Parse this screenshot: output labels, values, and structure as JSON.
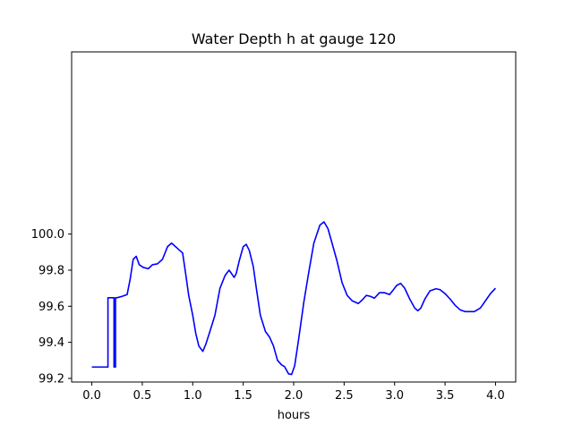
{
  "chart_data": {
    "type": "line",
    "title": "Water Depth h at gauge 120",
    "xlabel": "hours",
    "ylabel": "",
    "xlim": [
      -0.2,
      4.2
    ],
    "ylim": [
      99.18,
      101.01
    ],
    "grid": false,
    "x_ticks": [
      0.0,
      0.5,
      1.0,
      1.5,
      2.0,
      2.5,
      3.0,
      3.5,
      4.0
    ],
    "x_tick_labels": [
      "0.0",
      "0.5",
      "1.0",
      "1.5",
      "2.0",
      "2.5",
      "3.0",
      "3.5",
      "4.0"
    ],
    "y_ticks": [
      99.2,
      99.4,
      99.6,
      99.8,
      100.0
    ],
    "y_tick_labels": [
      "99.2",
      "99.4",
      "99.6",
      "99.8",
      "100.0"
    ],
    "series": [
      {
        "name": "",
        "color": "#0000ff",
        "points": [
          [
            0.0,
            99.263
          ],
          [
            0.16,
            99.263
          ],
          [
            0.16,
            99.647
          ],
          [
            0.22,
            99.647
          ],
          [
            0.22,
            99.263
          ],
          [
            0.235,
            99.263
          ],
          [
            0.235,
            99.647
          ],
          [
            0.25,
            99.647
          ],
          [
            0.3,
            99.655
          ],
          [
            0.35,
            99.665
          ],
          [
            0.38,
            99.75
          ],
          [
            0.41,
            99.86
          ],
          [
            0.44,
            99.877
          ],
          [
            0.47,
            99.83
          ],
          [
            0.51,
            99.815
          ],
          [
            0.56,
            99.808
          ],
          [
            0.6,
            99.83
          ],
          [
            0.65,
            99.835
          ],
          [
            0.7,
            99.86
          ],
          [
            0.75,
            99.93
          ],
          [
            0.79,
            99.95
          ],
          [
            0.82,
            99.935
          ],
          [
            0.86,
            99.915
          ],
          [
            0.9,
            99.895
          ],
          [
            0.93,
            99.78
          ],
          [
            0.96,
            99.66
          ],
          [
            1.0,
            99.55
          ],
          [
            1.03,
            99.45
          ],
          [
            1.06,
            99.38
          ],
          [
            1.1,
            99.35
          ],
          [
            1.13,
            99.39
          ],
          [
            1.17,
            99.46
          ],
          [
            1.22,
            99.55
          ],
          [
            1.27,
            99.7
          ],
          [
            1.32,
            99.77
          ],
          [
            1.36,
            99.8
          ],
          [
            1.38,
            99.785
          ],
          [
            1.41,
            99.76
          ],
          [
            1.43,
            99.78
          ],
          [
            1.46,
            99.85
          ],
          [
            1.5,
            99.93
          ],
          [
            1.53,
            99.943
          ],
          [
            1.56,
            99.91
          ],
          [
            1.6,
            99.82
          ],
          [
            1.63,
            99.7
          ],
          [
            1.67,
            99.55
          ],
          [
            1.72,
            99.46
          ],
          [
            1.76,
            99.43
          ],
          [
            1.8,
            99.38
          ],
          [
            1.84,
            99.3
          ],
          [
            1.88,
            99.275
          ],
          [
            1.91,
            99.265
          ],
          [
            1.95,
            99.225
          ],
          [
            1.98,
            99.222
          ],
          [
            2.01,
            99.27
          ],
          [
            2.05,
            99.42
          ],
          [
            2.1,
            99.62
          ],
          [
            2.15,
            99.79
          ],
          [
            2.2,
            99.95
          ],
          [
            2.26,
            100.05
          ],
          [
            2.3,
            100.068
          ],
          [
            2.34,
            100.03
          ],
          [
            2.38,
            99.95
          ],
          [
            2.43,
            99.85
          ],
          [
            2.48,
            99.73
          ],
          [
            2.53,
            99.66
          ],
          [
            2.58,
            99.63
          ],
          [
            2.64,
            99.615
          ],
          [
            2.68,
            99.635
          ],
          [
            2.72,
            99.66
          ],
          [
            2.76,
            99.655
          ],
          [
            2.8,
            99.645
          ],
          [
            2.85,
            99.675
          ],
          [
            2.9,
            99.675
          ],
          [
            2.95,
            99.665
          ],
          [
            2.98,
            99.685
          ],
          [
            3.02,
            99.715
          ],
          [
            3.06,
            99.727
          ],
          [
            3.1,
            99.7
          ],
          [
            3.15,
            99.64
          ],
          [
            3.2,
            99.59
          ],
          [
            3.23,
            99.575
          ],
          [
            3.26,
            99.59
          ],
          [
            3.3,
            99.64
          ],
          [
            3.35,
            99.685
          ],
          [
            3.41,
            99.697
          ],
          [
            3.45,
            99.692
          ],
          [
            3.5,
            99.67
          ],
          [
            3.55,
            99.64
          ],
          [
            3.6,
            99.605
          ],
          [
            3.65,
            99.58
          ],
          [
            3.7,
            99.57
          ],
          [
            3.79,
            99.57
          ],
          [
            3.85,
            99.59
          ],
          [
            3.9,
            99.63
          ],
          [
            3.95,
            99.67
          ],
          [
            4.0,
            99.7
          ]
        ]
      }
    ]
  }
}
